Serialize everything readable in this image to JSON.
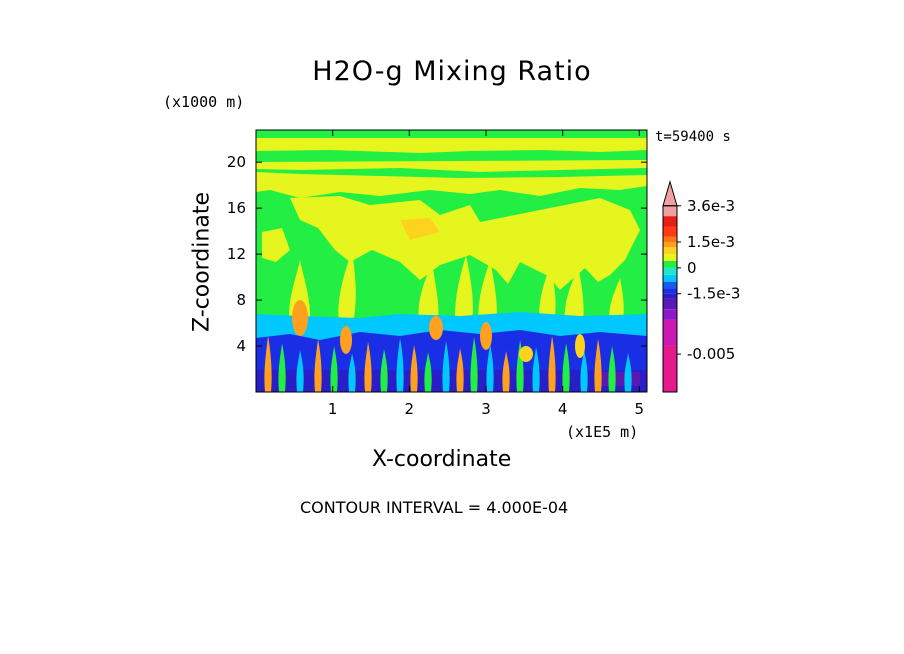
{
  "chart_data": {
    "type": "heatmap",
    "title": "H2O-g Mixing Ratio",
    "xlabel": "X-coordinate",
    "ylabel": "Z-coordinate",
    "x_scale_label": "(x1E5 m)",
    "y_scale_label": "(x1000 m)",
    "time_label": "t=59400 s",
    "annotation": "CONTOUR INTERVAL = 4.000E-04",
    "xlim": [
      0,
      5.1
    ],
    "ylim": [
      0,
      22.8
    ],
    "x_ticks": [
      "1",
      "2",
      "3",
      "4",
      "5"
    ],
    "x_tick_values": [
      1,
      2,
      3,
      4,
      5
    ],
    "y_ticks": [
      "4",
      "8",
      "12",
      "16",
      "20"
    ],
    "y_tick_values": [
      4,
      8,
      12,
      16,
      20
    ],
    "colorbar": {
      "labels": [
        "3.6e-3",
        "1.5e-3",
        "0",
        "-1.5e-3",
        "-0.005"
      ],
      "label_values": [
        0.0036,
        0.0015,
        0,
        -0.0015,
        -0.005
      ],
      "range": [
        -0.0072,
        0.0044
      ],
      "colors": [
        "#e6198c",
        "#cc19b3",
        "#8c19cc",
        "#5a19b4",
        "#2a1ec8",
        "#1a2ee6",
        "#1a5af0",
        "#00c8ff",
        "#20e6c8",
        "#22ee44",
        "#e6f51e",
        "#ffd21e",
        "#ffa01e",
        "#ff7814",
        "#ff3c14",
        "#e61e14",
        "#f0a0a0"
      ]
    },
    "field_layers": [
      {
        "level": "green",
        "description": "background value ~0"
      },
      {
        "level": "yellow",
        "description": "positive anomaly regions above ~10 km and plumes"
      },
      {
        "level": "cyan",
        "description": "band near 5-7 km"
      },
      {
        "level": "blue",
        "description": "negative anomaly band 0-5 km"
      },
      {
        "level": "orange",
        "description": "plume cores"
      }
    ]
  }
}
